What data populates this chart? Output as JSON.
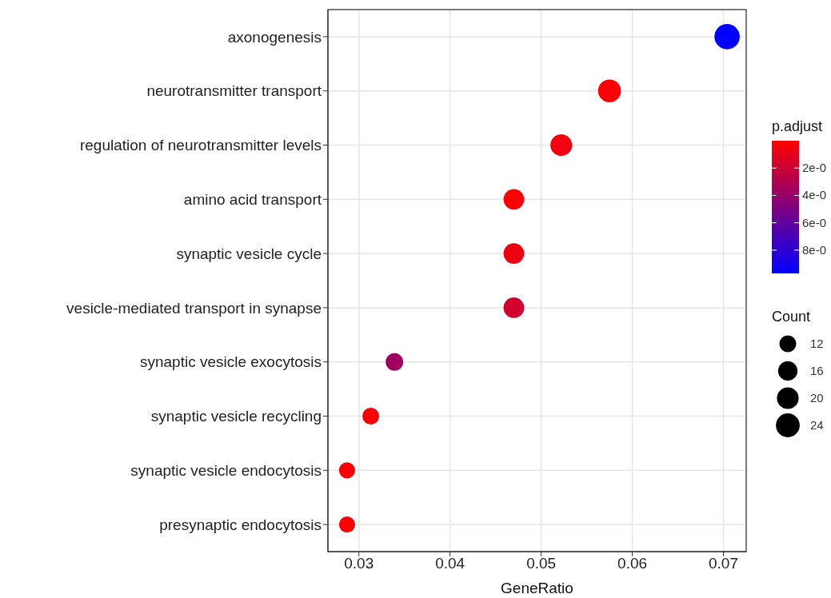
{
  "chart_data": {
    "type": "bubble",
    "orientation": "horizontal",
    "categories": [
      "axonogenesis",
      "neurotransmitter transport",
      "regulation of neurotransmitter levels",
      "amino acid transport",
      "synaptic vesicle cycle",
      "vesicle-mediated transport in synapse",
      "synaptic vesicle exocytosis",
      "synaptic vesicle recycling",
      "synaptic vesicle endocytosis",
      "presynaptic endocytosis"
    ],
    "values": [
      0.0704,
      0.0575,
      0.0522,
      0.047,
      0.047,
      0.047,
      0.0339,
      0.0313,
      0.0287,
      0.0287
    ],
    "sizes": [
      27,
      22,
      20,
      18,
      18,
      18,
      13,
      12,
      11,
      11
    ],
    "size_legend": [
      12,
      16,
      20,
      24
    ],
    "legend_title": "Count",
    "cvalues": [
      9.7,
      0.1,
      0.5,
      0.1,
      0.6,
      1.8,
      3.6,
      0.2,
      0.2,
      0.2
    ],
    "clabel": "p.adjust",
    "clim": [
      0,
      9.7
    ],
    "cticks": [
      {
        "value": 2,
        "label": "2e-0"
      },
      {
        "value": 4,
        "label": "4e-0"
      },
      {
        "value": 6,
        "label": "6e-0"
      },
      {
        "value": 8,
        "label": "8e-0"
      }
    ],
    "xlim": [
      0.0266,
      0.0725
    ],
    "xticks": [
      0.03,
      0.04,
      0.05,
      0.06,
      0.07
    ],
    "xlabel": "GeneRatio",
    "grid": true
  }
}
